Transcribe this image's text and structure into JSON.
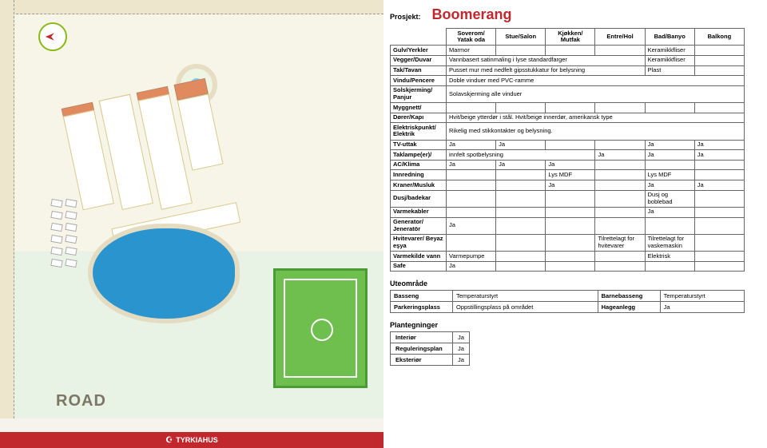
{
  "brand": "TYRKIAHUS",
  "project": {
    "label": "Prosjekt:",
    "name": "Boomerang"
  },
  "roadLabel": "ROAD",
  "colors": {
    "accent": "#c1282d",
    "field": "#6fbf4f",
    "pool": "#2a94cf"
  },
  "columns": [
    "Soverom/ Yatak oda",
    "Stue/Salon",
    "Kjøkken/ Mutfak",
    "Entre/Hol",
    "Bad/Banyo",
    "Balkong"
  ],
  "spec": [
    {
      "label": "Gulv/Yerkler",
      "vals": [
        "Marmor",
        "",
        "",
        "",
        "Keramikkfliser",
        ""
      ]
    },
    {
      "label": "Vegger/Duvar",
      "vals": [
        "Vannbasert satinmaling i lyse standardfarger",
        "",
        "",
        "",
        "Keramikkfliser",
        ""
      ],
      "span": 4
    },
    {
      "label": "Tak/Tavan",
      "vals": [
        "Pusset mur med nedfelt gipsstukkatur for belysning",
        "",
        "",
        "",
        "Plast",
        ""
      ],
      "span": 4
    },
    {
      "label": "Vindu/Pencere",
      "vals": [
        "Doble vinduer med PVC-ramme",
        "",
        "",
        "",
        "",
        ""
      ],
      "span": 6
    },
    {
      "label": "Solskjerming/ Panjur",
      "vals": [
        "Solavskjerming alle vinduer",
        "",
        "",
        "",
        "",
        ""
      ],
      "span": 6
    },
    {
      "label": "Myggnett/",
      "vals": [
        "",
        "",
        "",
        "",
        "",
        ""
      ]
    },
    {
      "label": "Dører/Kapı",
      "vals": [
        "Hvit/beige ytterdør i stål. Hvit/beige innerdør, amerikansk type",
        "",
        "",
        "",
        "",
        ""
      ],
      "span": 6
    },
    {
      "label": "Elektriskpunkt/ Elektrik",
      "vals": [
        "Rikelig med stikkontakter og belysning.",
        "",
        "",
        "",
        "",
        ""
      ],
      "span": 6
    },
    {
      "label": "TV-uttak",
      "vals": [
        "Ja",
        "Ja",
        "",
        "",
        "Ja",
        "Ja"
      ]
    },
    {
      "label": "Taklampe(er)/",
      "vals": [
        "innfelt spotbelysning",
        "",
        "",
        "Ja",
        "Ja",
        "Ja"
      ],
      "span": 3
    },
    {
      "label": "AC/Klima",
      "vals": [
        "Ja",
        "Ja",
        "Ja",
        "",
        "",
        ""
      ]
    },
    {
      "label": "Innredning",
      "vals": [
        "",
        "",
        "Lys MDF",
        "",
        "Lys MDF",
        ""
      ]
    },
    {
      "label": "Kraner/Musluk",
      "vals": [
        "",
        "",
        "Ja",
        "",
        "Ja",
        "Ja"
      ]
    },
    {
      "label": "Dusj/badekar",
      "vals": [
        "",
        "",
        "",
        "",
        "Dusj og boblebad",
        ""
      ]
    },
    {
      "label": "Varmekabler",
      "vals": [
        "",
        "",
        "",
        "",
        "Ja",
        ""
      ]
    },
    {
      "label": "Generator/ Jeneratör",
      "vals": [
        "Ja",
        "",
        "",
        "",
        "",
        ""
      ]
    },
    {
      "label": "Hvitevarer/ Beyaz eşya",
      "vals": [
        "",
        "",
        "",
        "Tilrettelagt for hvitevarer",
        "Tilrettelagt for vaskemaskin",
        ""
      ]
    },
    {
      "label": "Varmekilde vann",
      "vals": [
        "Varmepumpe",
        "",
        "",
        "",
        "Elektrisk",
        ""
      ]
    },
    {
      "label": "Safe",
      "vals": [
        "Ja",
        "",
        "",
        "",
        "",
        ""
      ]
    }
  ],
  "outdoor": {
    "title": "Uteområde",
    "rows": [
      [
        "Basseng",
        "Temperaturstyrt",
        "Barnebasseng",
        "Temperaturstyrt"
      ],
      [
        "Parkeringsplass",
        "Oppstillingsplass på området",
        "Hageanlegg",
        "Ja"
      ]
    ]
  },
  "plans": {
    "title": "Plantegninger",
    "rows": [
      [
        "Interiør",
        "Ja"
      ],
      [
        "Reguleringsplan",
        "Ja"
      ],
      [
        "Eksteriør",
        "Ja"
      ]
    ]
  }
}
